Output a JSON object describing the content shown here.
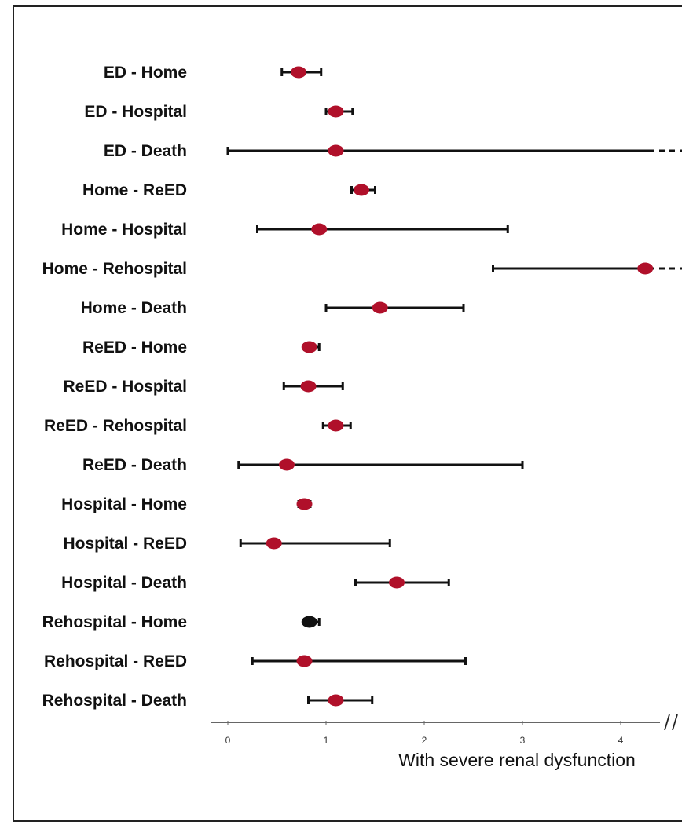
{
  "chart_data": {
    "type": "forest",
    "xlabel": "With severe renal dysfunction",
    "xlim": [
      -0.15,
      4.55
    ],
    "xticks": [
      0,
      1,
      2,
      3,
      4
    ],
    "tick_labels": [
      "0",
      "1",
      "2",
      "3",
      "4"
    ],
    "axis_break": true,
    "point_color": "#b0102a",
    "rows": [
      {
        "label": "ED - Home",
        "estimate": 0.72,
        "lower": 0.55,
        "upper": 0.95
      },
      {
        "label": "ED - Hospital",
        "estimate": 1.1,
        "lower": 1.0,
        "upper": 1.27
      },
      {
        "label": "ED - Death",
        "estimate": 1.1,
        "lower": 0.0,
        "upper": 4.3,
        "upper_truncated": true
      },
      {
        "label": "Home - ReED",
        "estimate": 1.36,
        "lower": 1.26,
        "upper": 1.5
      },
      {
        "label": "Home - Hospital",
        "estimate": 0.93,
        "lower": 0.3,
        "upper": 2.85
      },
      {
        "label": "Home - Rehospital",
        "estimate": 4.25,
        "lower": 2.7,
        "upper": 4.55,
        "upper_truncated": true
      },
      {
        "label": "Home - Death",
        "estimate": 1.55,
        "lower": 1.0,
        "upper": 2.4
      },
      {
        "label": "ReED - Home",
        "estimate": 0.83,
        "lower": 0.78,
        "upper": 0.93
      },
      {
        "label": "ReED - Hospital",
        "estimate": 0.82,
        "lower": 0.57,
        "upper": 1.17
      },
      {
        "label": "ReED - Rehospital",
        "estimate": 1.1,
        "lower": 0.97,
        "upper": 1.25
      },
      {
        "label": "ReED - Death",
        "estimate": 0.6,
        "lower": 0.11,
        "upper": 3.0
      },
      {
        "label": "Hospital - Home",
        "estimate": 0.78,
        "lower": 0.72,
        "upper": 0.84
      },
      {
        "label": "Hospital - ReED",
        "estimate": 0.47,
        "lower": 0.13,
        "upper": 1.65
      },
      {
        "label": "Hospital - Death",
        "estimate": 1.72,
        "lower": 1.3,
        "upper": 2.25
      },
      {
        "label": "Rehospital - Home",
        "estimate": 0.83,
        "lower": 0.78,
        "upper": 0.93,
        "point_color": "#111111"
      },
      {
        "label": "Rehospital - ReED",
        "estimate": 0.78,
        "lower": 0.25,
        "upper": 2.42
      },
      {
        "label": "Rehospital - Death",
        "estimate": 1.1,
        "lower": 0.82,
        "upper": 1.47
      }
    ]
  }
}
